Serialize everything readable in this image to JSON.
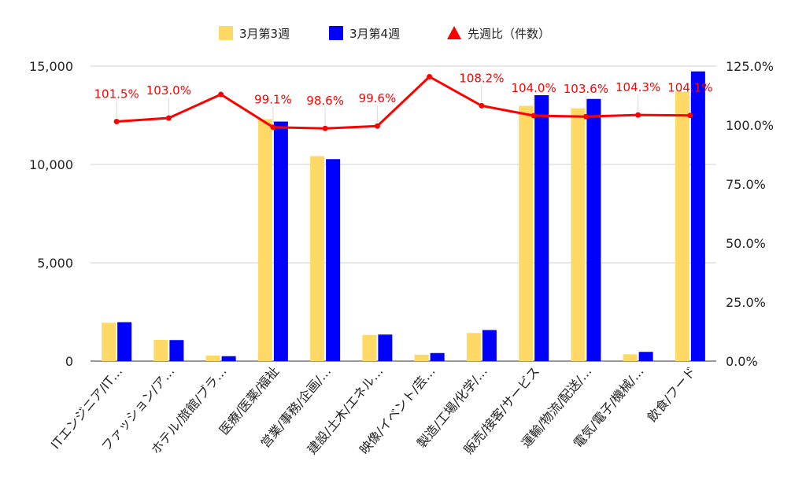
{
  "chart_data": {
    "type": "bar",
    "categories": [
      "ITエンジニア/IT…",
      "ファッション/ア…",
      "ホテル/旅館/ブラ…",
      "医療/医薬/福祉",
      "営業/事務/企画/…",
      "建設/土木/エネル…",
      "映像/イベント/芸…",
      "製造/工場/化学/…",
      "販売/接客/サービス",
      "運輸/物流/配送/…",
      "電気/電子/機械/…",
      "飲食/フード"
    ],
    "series": [
      {
        "name": "3月第3週",
        "color": "#FFD966",
        "axis": "left",
        "kind": "bar",
        "values": [
          1950,
          1080,
          280,
          12300,
          10420,
          1330,
          330,
          1430,
          12980,
          12850,
          350,
          13700
        ]
      },
      {
        "name": "3月第4週",
        "color": "#0000FF",
        "axis": "left",
        "kind": "bar",
        "values": [
          1980,
          1070,
          250,
          12180,
          10270,
          1350,
          410,
          1580,
          13520,
          13330,
          470,
          14730
        ]
      },
      {
        "name": "先週比（件数）",
        "color": "#FF0000",
        "axis": "right",
        "kind": "line",
        "values": [
          101.5,
          103.0,
          113.0,
          99.1,
          98.6,
          99.6,
          120.5,
          108.2,
          104.0,
          103.6,
          104.3,
          104.1
        ],
        "labels": [
          "101.5%",
          "103.0%",
          "",
          "99.1%",
          "98.6%",
          "99.6%",
          "",
          "108.2%",
          "104.0%",
          "103.6%",
          "104.3%",
          "104.1%"
        ]
      }
    ],
    "y_left": {
      "min": 0,
      "max": 15000,
      "ticks": [
        0,
        5000,
        10000,
        15000
      ],
      "tick_labels": [
        "0",
        "5,000",
        "10,000",
        "15,000"
      ]
    },
    "y_right": {
      "min": 0,
      "max": 125,
      "ticks": [
        0,
        25,
        50,
        75,
        100,
        125
      ],
      "tick_labels": [
        "0.0%",
        "25.0%",
        "50.0%",
        "75.0%",
        "100.0%",
        "125.0%"
      ]
    },
    "grid": true,
    "legend_position": "top-center",
    "title": "",
    "xlabel": "",
    "ylabel": ""
  }
}
